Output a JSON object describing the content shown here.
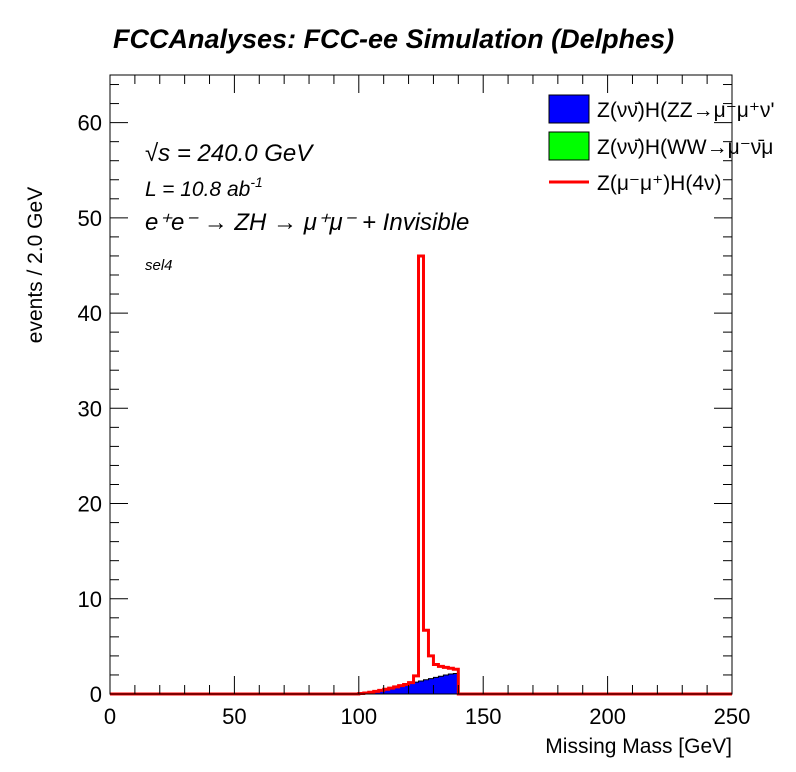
{
  "chart_data": {
    "type": "line",
    "title": "FCCAnalyses: FCC-ee Simulation (Delphes)",
    "xlabel": "Missing Mass [GeV]",
    "ylabel": "events / 2.0 GeV",
    "xlim": [
      0,
      250
    ],
    "ylim": [
      0,
      65
    ],
    "x_ticks": [
      "0",
      "50",
      "100",
      "150",
      "200",
      "250"
    ],
    "y_ticks": [
      "0",
      "10",
      "20",
      "30",
      "40",
      "50",
      "60"
    ],
    "grid": false,
    "legend_position": "top-right",
    "bin_width": 2.0,
    "annotations": {
      "sqrt_s": "√s = 240.0 GeV",
      "sqrt_symbol": "√",
      "sqrt_text": "s = 240.0 GeV",
      "lumi_prefix": "L = 10.8 ab",
      "lumi_exp": "-1",
      "process": "e⁺e⁻ → ZH → μ⁺μ⁻ + Invisible",
      "selection": "sel4"
    },
    "series": [
      {
        "name": "Z(νν̄)H(ZZ→μ⁻μ⁺ν'",
        "style": "filled",
        "color": "#0000ff",
        "x": [
          100,
          102,
          104,
          106,
          108,
          110,
          112,
          114,
          116,
          118,
          120,
          122,
          124,
          126,
          128,
          130,
          132,
          134,
          136,
          138,
          140
        ],
        "values": [
          0.05,
          0.1,
          0.18,
          0.28,
          0.38,
          0.5,
          0.62,
          0.75,
          0.88,
          1.0,
          1.12,
          1.25,
          1.37,
          1.5,
          1.62,
          1.75,
          1.87,
          2.0,
          2.1,
          2.15,
          0
        ]
      },
      {
        "name": "Z(νν̄)H(WW→μ⁻ν̄μ",
        "style": "filled",
        "color": "#00ff00",
        "x": [],
        "values": []
      },
      {
        "name": "Z(μ⁻μ⁺)H(4ν)",
        "style": "line",
        "color": "#ff0000",
        "x": [
          100,
          102,
          104,
          106,
          108,
          110,
          112,
          114,
          116,
          118,
          120,
          122,
          124,
          126,
          128,
          130,
          132,
          134,
          136,
          138,
          140
        ],
        "values": [
          0.05,
          0.1,
          0.18,
          0.28,
          0.38,
          0.5,
          0.62,
          0.75,
          0.88,
          1.0,
          1.2,
          1.9,
          46.0,
          6.7,
          4.0,
          3.1,
          2.9,
          2.8,
          2.7,
          2.6,
          0
        ]
      }
    ]
  },
  "colors": {
    "frame": "#000000",
    "background": "#ffffff"
  }
}
